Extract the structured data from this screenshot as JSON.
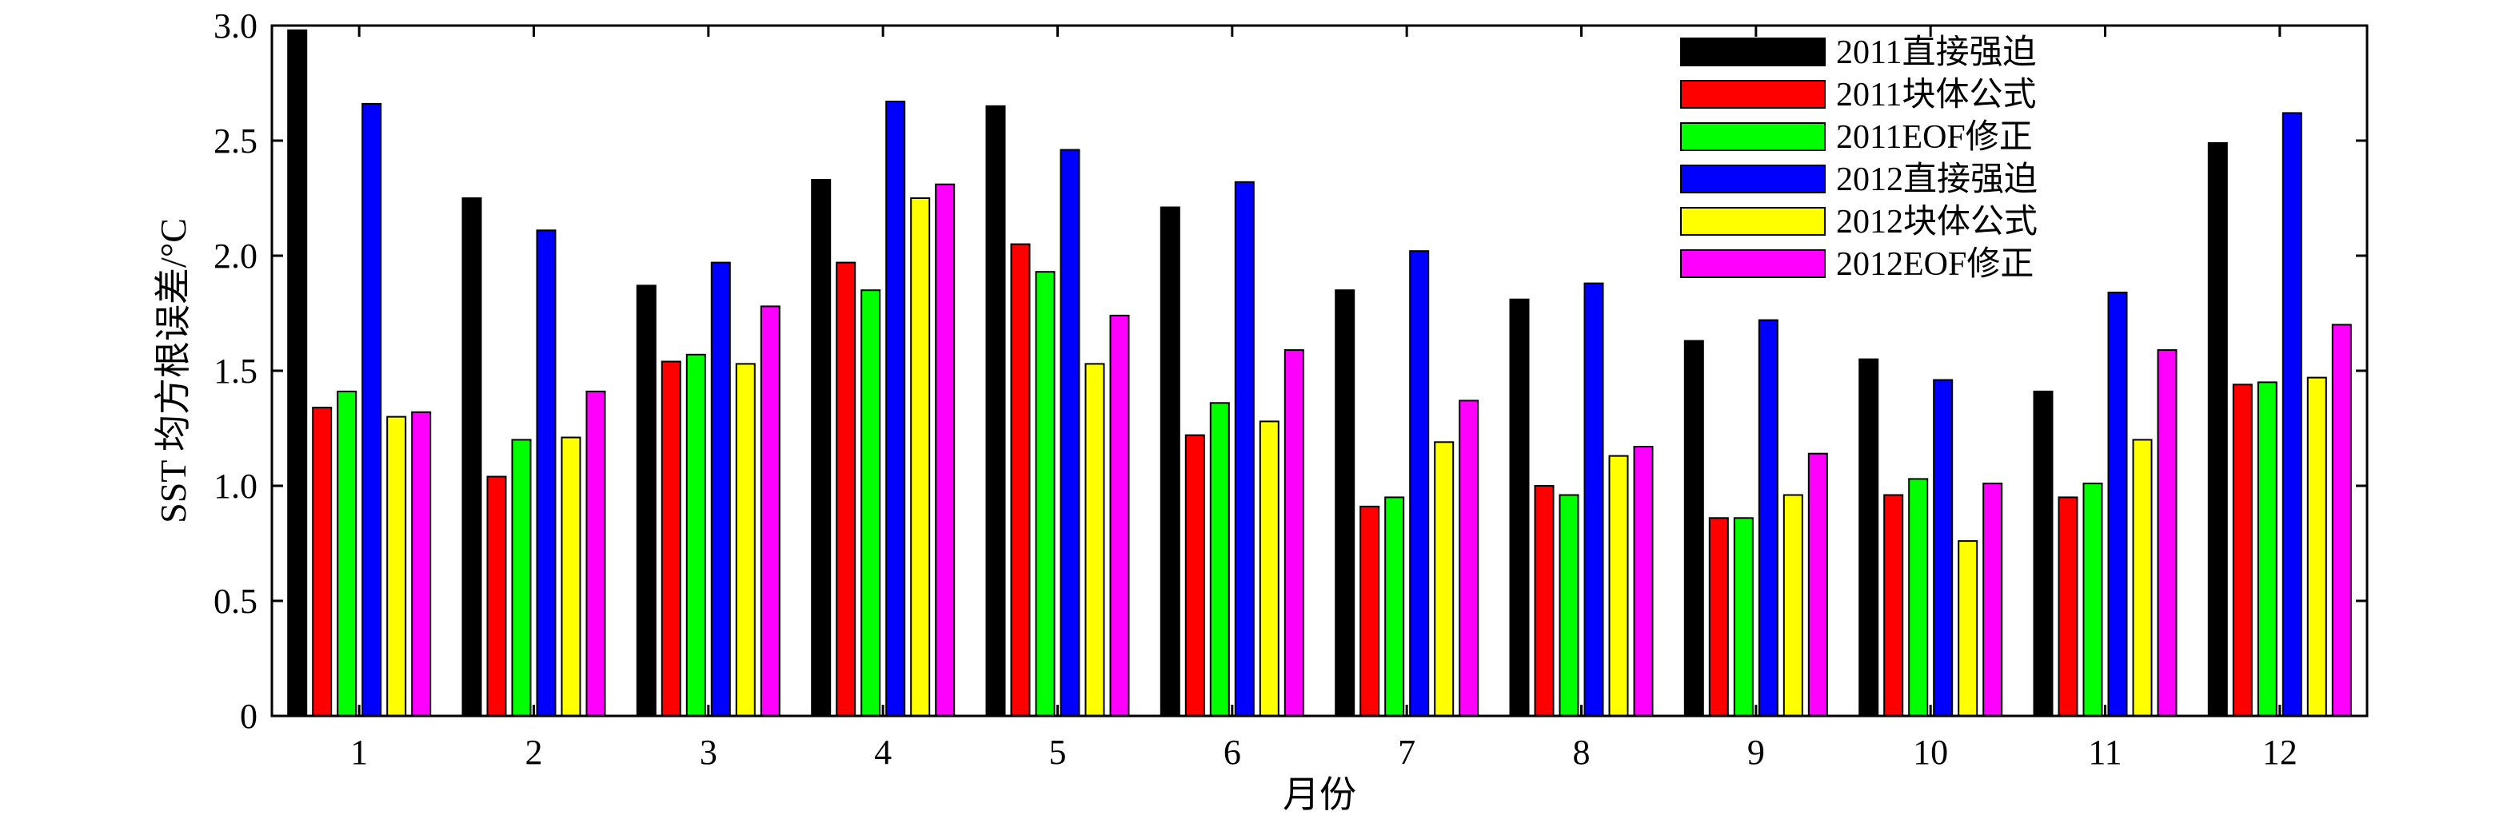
{
  "chart_data": {
    "type": "bar",
    "xlabel": "月份",
    "ylabel": "SST 均方根误差/°C",
    "ylim": [
      0,
      3.0
    ],
    "yticks": [
      "0",
      "0.5",
      "1.0",
      "1.5",
      "2.0",
      "2.5",
      "3.0"
    ],
    "categories": [
      "1",
      "2",
      "3",
      "4",
      "5",
      "6",
      "7",
      "8",
      "9",
      "10",
      "11",
      "12"
    ],
    "grid": false,
    "legend_position": "top-right",
    "series": [
      {
        "name": "2011直接强迫",
        "color": "#000000",
        "values": [
          2.98,
          2.25,
          1.87,
          2.33,
          2.65,
          2.21,
          1.85,
          1.81,
          1.63,
          1.55,
          1.41,
          2.49
        ]
      },
      {
        "name": "2011块体公式",
        "color": "#ff0000",
        "values": [
          1.34,
          1.04,
          1.54,
          1.97,
          2.05,
          1.22,
          0.91,
          1.0,
          0.86,
          0.96,
          0.95,
          1.44
        ]
      },
      {
        "name": "2011EOF修正",
        "color": "#00ff00",
        "values": [
          1.41,
          1.2,
          1.57,
          1.85,
          1.93,
          1.36,
          0.95,
          0.96,
          0.86,
          1.03,
          1.01,
          1.45
        ]
      },
      {
        "name": "2012直接强迫",
        "color": "#0000ff",
        "values": [
          2.66,
          2.11,
          1.97,
          2.67,
          2.46,
          2.32,
          2.02,
          1.88,
          1.72,
          1.46,
          1.84,
          2.62
        ]
      },
      {
        "name": "2012块体公式",
        "color": "#ffff00",
        "values": [
          1.3,
          1.21,
          1.53,
          2.25,
          1.53,
          1.28,
          1.19,
          1.13,
          0.96,
          0.76,
          1.2,
          1.47
        ]
      },
      {
        "name": "2012EOF修正",
        "color": "#ff00ff",
        "values": [
          1.32,
          1.41,
          1.78,
          2.31,
          1.74,
          1.59,
          1.37,
          1.17,
          1.14,
          1.01,
          1.59,
          1.7
        ]
      }
    ]
  }
}
